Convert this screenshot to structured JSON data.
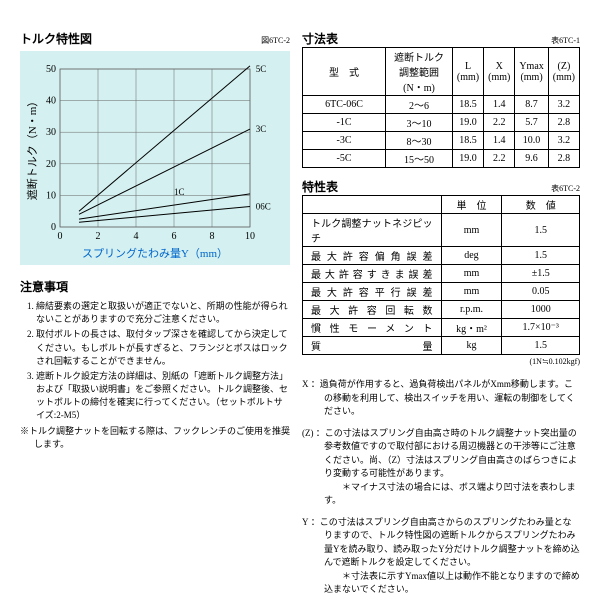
{
  "chart": {
    "title": "トルク特性図",
    "fig_label": "図6TC-2",
    "xlabel": "スプリングたわみ量Y（mm）",
    "ylabel": "遮断トルク（N・m）",
    "xlim": [
      0,
      10
    ],
    "ylim": [
      0,
      50
    ],
    "xticks": [
      0,
      2,
      4,
      6,
      8,
      10
    ],
    "yticks": [
      0,
      10,
      20,
      30,
      40,
      50
    ],
    "bg_color": "#d4f0f0",
    "grid_color": "#666",
    "line_color": "#000",
    "series": [
      {
        "label": "5C",
        "pts": [
          [
            1,
            5
          ],
          [
            10,
            51
          ]
        ]
      },
      {
        "label": "3C",
        "pts": [
          [
            1,
            4
          ],
          [
            10,
            31
          ]
        ]
      },
      {
        "label": "1C",
        "pts": [
          [
            1,
            2.5
          ],
          [
            10,
            10.5
          ]
        ]
      },
      {
        "label": "06C",
        "pts": [
          [
            1,
            1.5
          ],
          [
            10,
            6.5
          ]
        ]
      }
    ],
    "label_positions": {
      "5C": [
        10.3,
        50
      ],
      "3C": [
        10.3,
        31
      ],
      "1C": [
        6,
        11
      ],
      "06C": [
        10.3,
        6.5
      ]
    }
  },
  "dim_table": {
    "title": "寸法表",
    "fig_label": "表6TC-1",
    "headers": [
      "型　式",
      "遮断トルク調整範囲\n(N・m)",
      "L\n(mm)",
      "X\n(mm)",
      "Ymax\n(mm)",
      "(Z)\n(mm)"
    ],
    "rows": [
      [
        "6TC-06C",
        "2～6",
        "18.5",
        "1.4",
        "8.7",
        "3.2"
      ],
      [
        "-1C",
        "3～10",
        "19.0",
        "2.2",
        "5.7",
        "2.8"
      ],
      [
        "-3C",
        "8～30",
        "18.5",
        "1.4",
        "10.0",
        "3.2"
      ],
      [
        "-5C",
        "15～50",
        "19.0",
        "2.2",
        "9.6",
        "2.8"
      ]
    ]
  },
  "prop_table": {
    "title": "特性表",
    "fig_label": "表6TC-2",
    "headers": [
      "",
      "単　位",
      "数　値"
    ],
    "rows": [
      [
        "トルク調整ナットネジピッチ",
        "mm",
        "1.5"
      ],
      [
        "最大許容偏角誤差",
        "deg",
        "1.5"
      ],
      [
        "最大許容すきま誤差",
        "mm",
        "±1.5"
      ],
      [
        "最大許容平行誤差",
        "mm",
        "0.05"
      ],
      [
        "最大許容回転数",
        "r.p.m.",
        "1000"
      ],
      [
        "慣性モーメント",
        "kg・m²",
        "1.7×10⁻³"
      ],
      [
        "質　　　量",
        "kg",
        "1.5"
      ]
    ],
    "footnote": "(1N≒0.102kgf)"
  },
  "left_notes": {
    "title": "注意事項",
    "items": [
      "締結要素の選定と取扱いが適正でないと、所期の性能が得られないことがありますので充分ご注意ください。",
      "取付ボルトの長さは、取付タップ深さを確認してから決定してください。もしボルトが長すぎると、フランジとボスはロックされ回転することができません。",
      "遮断トルク設定方法の詳細は、別紙の「遮断トルク調整方法」および「取扱い説明書」をご参照ください。トルク調整後、セットボルトの締付を確実に行ってください。（セットボルトサイズ:2-M5）"
    ],
    "extra": "※トルク調整ナットを回転する際は、フックレンチのご使用を推奨します。"
  },
  "right_notes": {
    "items": [
      {
        "k": "X",
        "t": "：過負荷が作用すると、過負荷検出パネルがXmm移動します。この移動を利用して、検出スイッチを用い、運転の制御をしてください。"
      },
      {
        "k": "(Z)",
        "t": "：この寸法はスプリング自由高さ時のトルク調整ナット突出量の参考数値ですので取付部における周辺機器との干渉等にご注意ください。尚、（Z）寸法はスプリング自由高さのばらつきにより変動する可能性があります。\n＊マイナス寸法の場合には、ボス端より凹寸法を表わします。"
      },
      {
        "k": "Y",
        "t": "：この寸法はスプリング自由高さからのスプリングたわみ量となりますので、トルク特性図の遮断トルクからスプリングたわみ量Yを読み取り、読み取ったY分だけトルク調整ナットを締め込んで遮断トルクを設定してください。\n＊寸法表に示すYmax値以上は動作不能となりますので締め込まないでください。"
      }
    ]
  }
}
